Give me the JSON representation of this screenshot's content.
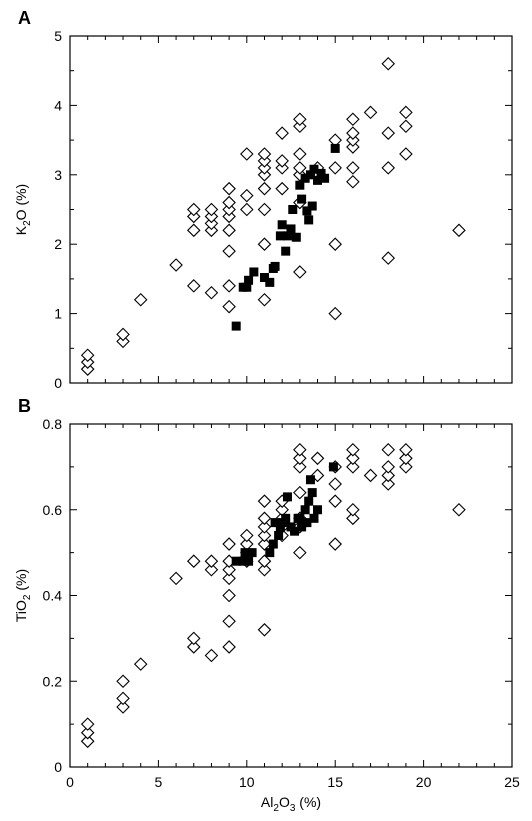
{
  "chart_data": [
    {
      "type": "scatter",
      "panel_label": "A",
      "title": "",
      "xlabel": "",
      "ylabel": {
        "main": "K",
        "sub": "2",
        "tail": "O (%)"
      },
      "xlim": [
        0,
        25
      ],
      "ylim": [
        0,
        5
      ],
      "x_ticks": [
        0,
        5,
        10,
        15,
        20,
        25
      ],
      "x_tick_labels_shown": false,
      "y_ticks": [
        0,
        1,
        2,
        3,
        4,
        5
      ],
      "y_tick_labels": [
        "0",
        "1",
        "2",
        "3",
        "4",
        "5"
      ],
      "grid": false,
      "series": [
        {
          "marker": "open-diamond",
          "points": [
            [
              1,
              0.2
            ],
            [
              1,
              0.2
            ],
            [
              1,
              0.3
            ],
            [
              1,
              0.4
            ],
            [
              3,
              0.6
            ],
            [
              3,
              0.7
            ],
            [
              4,
              1.2
            ],
            [
              6,
              1.7
            ],
            [
              7,
              1.4
            ],
            [
              7,
              2.2
            ],
            [
              7,
              2.4
            ],
            [
              7,
              2.5
            ],
            [
              8,
              1.3
            ],
            [
              8,
              2.2
            ],
            [
              8,
              2.3
            ],
            [
              8,
              2.4
            ],
            [
              8,
              2.5
            ],
            [
              9,
              1.1
            ],
            [
              9,
              1.4
            ],
            [
              9,
              1.9
            ],
            [
              9,
              2.2
            ],
            [
              9,
              2.4
            ],
            [
              9,
              2.5
            ],
            [
              9,
              2.6
            ],
            [
              9,
              2.8
            ],
            [
              10,
              2.5
            ],
            [
              10,
              2.7
            ],
            [
              10,
              3.3
            ],
            [
              11,
              1.2
            ],
            [
              11,
              2.0
            ],
            [
              11,
              2.5
            ],
            [
              11,
              2.8
            ],
            [
              11,
              3.0
            ],
            [
              11,
              3.1
            ],
            [
              11,
              3.2
            ],
            [
              11,
              3.3
            ],
            [
              12,
              2.8
            ],
            [
              12,
              3.1
            ],
            [
              12,
              3.2
            ],
            [
              12,
              3.6
            ],
            [
              13,
              1.6
            ],
            [
              13,
              2.6
            ],
            [
              13,
              3.0
            ],
            [
              13,
              3.1
            ],
            [
              13,
              3.3
            ],
            [
              13,
              3.7
            ],
            [
              13,
              3.8
            ],
            [
              14,
              3.0
            ],
            [
              14,
              3.1
            ],
            [
              15,
              1.0
            ],
            [
              15,
              2.0
            ],
            [
              15,
              3.1
            ],
            [
              15,
              3.5
            ],
            [
              16,
              2.9
            ],
            [
              16,
              3.1
            ],
            [
              16,
              3.4
            ],
            [
              16,
              3.5
            ],
            [
              16,
              3.6
            ],
            [
              16,
              3.8
            ],
            [
              17,
              3.9
            ],
            [
              18,
              1.8
            ],
            [
              18,
              3.1
            ],
            [
              18,
              3.6
            ],
            [
              18,
              4.6
            ],
            [
              19,
              3.3
            ],
            [
              19,
              3.7
            ],
            [
              19,
              3.9
            ],
            [
              22,
              2.2
            ]
          ]
        },
        {
          "marker": "filled-square",
          "points": [
            [
              9.4,
              0.82
            ],
            [
              9.8,
              1.38
            ],
            [
              10.0,
              1.38
            ],
            [
              10.1,
              1.48
            ],
            [
              10.4,
              1.6
            ],
            [
              11.0,
              1.52
            ],
            [
              11.3,
              1.45
            ],
            [
              11.5,
              1.65
            ],
            [
              11.6,
              1.68
            ],
            [
              11.9,
              2.12
            ],
            [
              12.0,
              2.28
            ],
            [
              12.2,
              1.9
            ],
            [
              12.3,
              2.12
            ],
            [
              12.5,
              2.22
            ],
            [
              12.6,
              2.5
            ],
            [
              12.8,
              2.1
            ],
            [
              13.0,
              2.85
            ],
            [
              13.1,
              2.65
            ],
            [
              13.3,
              2.95
            ],
            [
              13.4,
              2.48
            ],
            [
              13.5,
              2.35
            ],
            [
              13.6,
              3.0
            ],
            [
              13.7,
              2.55
            ],
            [
              13.8,
              3.08
            ],
            [
              14.0,
              2.92
            ],
            [
              14.2,
              3.02
            ],
            [
              14.4,
              2.95
            ],
            [
              15.0,
              3.38
            ]
          ]
        }
      ]
    },
    {
      "type": "scatter",
      "panel_label": "B",
      "title": "",
      "xlabel": {
        "main": "Al",
        "sub1": "2",
        "mid": "O",
        "sub2": "3",
        "tail": " (%)"
      },
      "ylabel": {
        "main": "TiO",
        "sub": "2",
        "tail": " (%)"
      },
      "xlim": [
        0,
        25
      ],
      "ylim": [
        0,
        0.8
      ],
      "x_ticks": [
        0,
        5,
        10,
        15,
        20,
        25
      ],
      "x_tick_labels": [
        "0",
        "5",
        "10",
        "15",
        "20",
        "25"
      ],
      "y_ticks": [
        0,
        0.2,
        0.4,
        0.6,
        0.8
      ],
      "y_tick_labels": [
        "0",
        "0.2",
        "0.4",
        "0.6",
        "0.8"
      ],
      "grid": false,
      "series": [
        {
          "marker": "open-diamond",
          "points": [
            [
              1,
              0.06
            ],
            [
              1,
              0.06
            ],
            [
              1,
              0.08
            ],
            [
              1,
              0.1
            ],
            [
              3,
              0.14
            ],
            [
              3,
              0.16
            ],
            [
              3,
              0.2
            ],
            [
              4,
              0.24
            ],
            [
              6,
              0.44
            ],
            [
              7,
              0.28
            ],
            [
              7,
              0.3
            ],
            [
              7,
              0.48
            ],
            [
              8,
              0.26
            ],
            [
              8,
              0.46
            ],
            [
              8,
              0.48
            ],
            [
              9,
              0.28
            ],
            [
              9,
              0.34
            ],
            [
              9,
              0.4
            ],
            [
              9,
              0.44
            ],
            [
              9,
              0.46
            ],
            [
              9,
              0.48
            ],
            [
              9,
              0.52
            ],
            [
              10,
              0.48
            ],
            [
              10,
              0.5
            ],
            [
              10,
              0.52
            ],
            [
              10,
              0.54
            ],
            [
              11,
              0.32
            ],
            [
              11,
              0.46
            ],
            [
              11,
              0.48
            ],
            [
              11,
              0.52
            ],
            [
              11,
              0.54
            ],
            [
              11,
              0.56
            ],
            [
              11,
              0.58
            ],
            [
              11,
              0.62
            ],
            [
              12,
              0.54
            ],
            [
              12,
              0.56
            ],
            [
              12,
              0.58
            ],
            [
              12,
              0.6
            ],
            [
              12,
              0.62
            ],
            [
              13,
              0.5
            ],
            [
              13,
              0.56
            ],
            [
              13,
              0.58
            ],
            [
              13,
              0.64
            ],
            [
              13,
              0.7
            ],
            [
              13,
              0.72
            ],
            [
              13,
              0.74
            ],
            [
              14,
              0.68
            ],
            [
              14,
              0.72
            ],
            [
              15,
              0.52
            ],
            [
              15,
              0.62
            ],
            [
              15,
              0.66
            ],
            [
              15,
              0.7
            ],
            [
              16,
              0.58
            ],
            [
              16,
              0.6
            ],
            [
              16,
              0.7
            ],
            [
              16,
              0.72
            ],
            [
              16,
              0.74
            ],
            [
              17,
              0.68
            ],
            [
              18,
              0.66
            ],
            [
              18,
              0.68
            ],
            [
              18,
              0.7
            ],
            [
              18,
              0.74
            ],
            [
              19,
              0.7
            ],
            [
              19,
              0.72
            ],
            [
              19,
              0.74
            ],
            [
              22,
              0.6
            ]
          ]
        },
        {
          "marker": "filled-square",
          "points": [
            [
              9.4,
              0.48
            ],
            [
              9.8,
              0.48
            ],
            [
              9.9,
              0.5
            ],
            [
              10.1,
              0.48
            ],
            [
              10.3,
              0.5
            ],
            [
              11.3,
              0.5
            ],
            [
              11.5,
              0.52
            ],
            [
              11.6,
              0.57
            ],
            [
              11.8,
              0.54
            ],
            [
              11.9,
              0.56
            ],
            [
              12.0,
              0.57
            ],
            [
              12.2,
              0.58
            ],
            [
              12.3,
              0.63
            ],
            [
              12.5,
              0.56
            ],
            [
              12.7,
              0.55
            ],
            [
              12.9,
              0.58
            ],
            [
              13.0,
              0.58
            ],
            [
              13.1,
              0.56
            ],
            [
              13.3,
              0.6
            ],
            [
              13.4,
              0.57
            ],
            [
              13.5,
              0.62
            ],
            [
              13.6,
              0.67
            ],
            [
              13.7,
              0.64
            ],
            [
              13.8,
              0.58
            ],
            [
              14.0,
              0.6
            ],
            [
              14.9,
              0.7
            ]
          ]
        }
      ]
    }
  ]
}
